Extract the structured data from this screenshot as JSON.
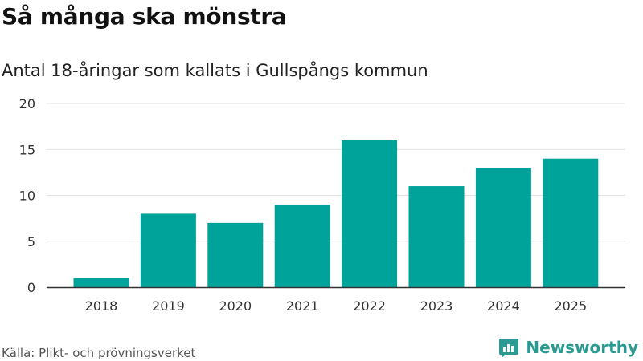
{
  "header": {
    "title": "Så många ska mönstra",
    "subtitle": "Antal 18-åringar som kallats i Gullspångs kommun"
  },
  "footer": {
    "source": "Källa: Plikt- och prövningsverket",
    "brand": "Newsworthy"
  },
  "colors": {
    "bar": "#00a39a",
    "grid": "#e0e0e0",
    "axis": "#333333",
    "brand": "#2a9a92"
  },
  "icons": {
    "brand_logo": "newsworthy-logo-icon"
  },
  "chart_data": {
    "type": "bar",
    "title": "Så många ska mönstra",
    "subtitle": "Antal 18-åringar som kallats i Gullspångs kommun",
    "xlabel": "",
    "ylabel": "",
    "categories": [
      "2018",
      "2019",
      "2020",
      "2021",
      "2022",
      "2023",
      "2024",
      "2025"
    ],
    "values": [
      1,
      8,
      7,
      9,
      16,
      11,
      13,
      14
    ],
    "ylim": [
      0,
      20
    ],
    "yticks": [
      0,
      5,
      10,
      15,
      20
    ],
    "grid": true,
    "legend": "none"
  }
}
